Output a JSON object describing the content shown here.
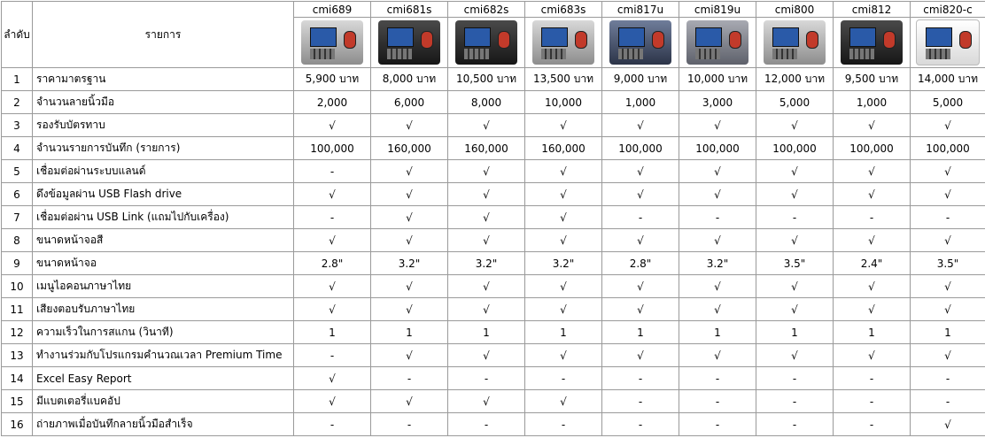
{
  "header": {
    "no_label": "ลำดับ",
    "item_label": "รายการ"
  },
  "models": [
    {
      "name": "cmi689",
      "photo": "cmi689-device-photo",
      "color": "silver"
    },
    {
      "name": "cmi681s",
      "photo": "cmi681s-device-photo",
      "color": "dark"
    },
    {
      "name": "cmi682s",
      "photo": "cmi682s-device-photo",
      "color": "dark"
    },
    {
      "name": "cmi683s",
      "photo": "cmi683s-device-photo",
      "color": "silver"
    },
    {
      "name": "cmi817u",
      "photo": "cmi817u-device-photo",
      "color": "blue"
    },
    {
      "name": "cmi819u",
      "photo": "cmi819u-device-photo",
      "color": "grey"
    },
    {
      "name": "cmi800",
      "photo": "cmi800-device-photo",
      "color": "silver"
    },
    {
      "name": "cmi812",
      "photo": "cmi812-device-photo",
      "color": "dark"
    },
    {
      "name": "cmi820-c",
      "photo": "cmi820-c-device-photo",
      "color": "white"
    }
  ],
  "rows": [
    {
      "no": "1",
      "item": "ราคามาตรฐาน",
      "values": [
        "5,900 บาท",
        "8,000 บาท",
        "10,500 บาท",
        "13,500 บาท",
        "9,000 บาท",
        "10,000 บาท",
        "12,000 บาท",
        "9,500 บาท",
        "14,000 บาท"
      ]
    },
    {
      "no": "2",
      "item": "จำนวนลายนิ้วมือ",
      "values": [
        "2,000",
        "6,000",
        "8,000",
        "10,000",
        "1,000",
        "3,000",
        "5,000",
        "1,000",
        "5,000"
      ]
    },
    {
      "no": "3",
      "item": "รองรับบัตรทาบ",
      "values": [
        "√",
        "√",
        "√",
        "√",
        "√",
        "√",
        "√",
        "√",
        "√"
      ]
    },
    {
      "no": "4",
      "item": "จำนวนรายการบันทึก (รายการ)",
      "values": [
        "100,000",
        "160,000",
        "160,000",
        "160,000",
        "100,000",
        "100,000",
        "100,000",
        "100,000",
        "100,000"
      ]
    },
    {
      "no": "5",
      "item": "เชื่อมต่อผ่านระบบแลนด์",
      "values": [
        "-",
        "√",
        "√",
        "√",
        "√",
        "√",
        "√",
        "√",
        "√"
      ]
    },
    {
      "no": "6",
      "item": "ดึงข้อมูลผ่าน USB Flash drive",
      "values": [
        "√",
        "√",
        "√",
        "√",
        "√",
        "√",
        "√",
        "√",
        "√"
      ]
    },
    {
      "no": "7",
      "item": "เชื่อมต่อผ่าน USB Link (แถมไปกับเครื่อง)",
      "values": [
        "-",
        "√",
        "√",
        "√",
        "-",
        "-",
        "-",
        "-",
        "-"
      ]
    },
    {
      "no": "8",
      "item": "ขนาดหน้าจอสี",
      "values": [
        "√",
        "√",
        "√",
        "√",
        "√",
        "√",
        "√",
        "√",
        "√"
      ]
    },
    {
      "no": "9",
      "item": "ขนาดหน้าจอ",
      "values": [
        "2.8\"",
        "3.2\"",
        "3.2\"",
        "3.2\"",
        "2.8\"",
        "3.2\"",
        "3.5\"",
        "2.4\"",
        "3.5\""
      ]
    },
    {
      "no": "10",
      "item": "เมนูไอคอนภาษาไทย",
      "values": [
        "√",
        "√",
        "√",
        "√",
        "√",
        "√",
        "√",
        "√",
        "√"
      ]
    },
    {
      "no": "11",
      "item": "เสียงตอบรับภาษาไทย",
      "values": [
        "√",
        "√",
        "√",
        "√",
        "√",
        "√",
        "√",
        "√",
        "√"
      ]
    },
    {
      "no": "12",
      "item": "ความเร็วในการสแกน (วินาที)",
      "values": [
        "1",
        "1",
        "1",
        "1",
        "1",
        "1",
        "1",
        "1",
        "1"
      ]
    },
    {
      "no": "13",
      "item": "ทำงานร่วมกับโปรแกรมคำนวณเวลา Premium Time",
      "values": [
        "-",
        "√",
        "√",
        "√",
        "√",
        "√",
        "√",
        "√",
        "√"
      ]
    },
    {
      "no": "14",
      "item": "Excel Easy Report",
      "values": [
        "√",
        "-",
        "-",
        "-",
        "-",
        "-",
        "-",
        "-",
        "-"
      ]
    },
    {
      "no": "15",
      "item": "มีแบตเตอรี่แบคอัป",
      "values": [
        "√",
        "√",
        "√",
        "√",
        "-",
        "-",
        "-",
        "-",
        "-"
      ]
    },
    {
      "no": "16",
      "item": "ถ่ายภาพเมื่อบันทึกลายนิ้วมือสำเร็จ",
      "values": [
        "-",
        "-",
        "-",
        "-",
        "-",
        "-",
        "-",
        "-",
        "√"
      ]
    }
  ]
}
